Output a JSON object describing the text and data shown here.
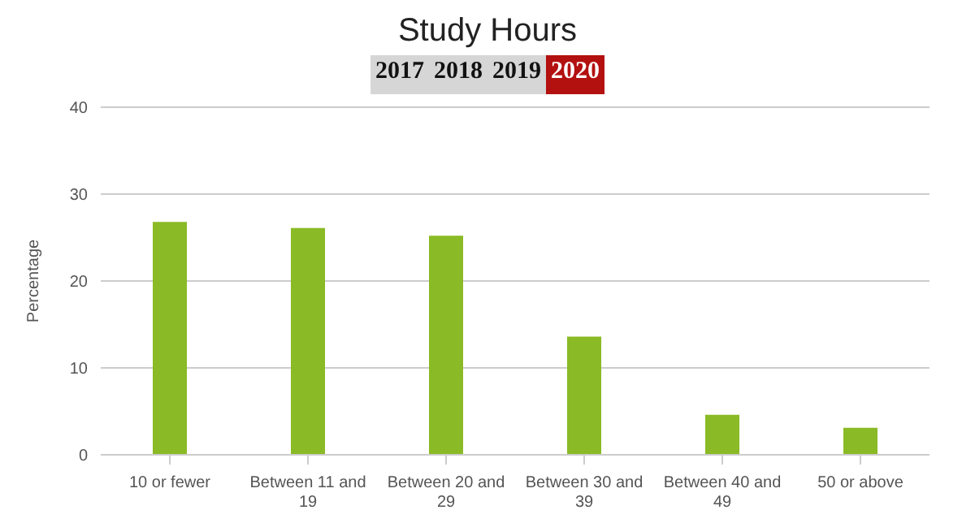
{
  "chart_data": {
    "type": "bar",
    "title": "Study Hours",
    "annotations": [
      "2017",
      "2018",
      "2019",
      "2020"
    ],
    "ylabel": "Percentage",
    "categories": [
      "10 or fewer",
      "Between 11 and 19",
      "Between 20 and 29",
      "Between 30 and 39",
      "Between 40 and 49",
      "50 or above"
    ],
    "values": [
      26.8,
      26.1,
      25.2,
      13.6,
      4.6,
      3.1
    ],
    "color": "#8aba25",
    "ylim": [
      0,
      40
    ],
    "yticks": [
      0,
      10,
      20,
      30,
      40
    ],
    "grid": "y",
    "legend": false
  }
}
